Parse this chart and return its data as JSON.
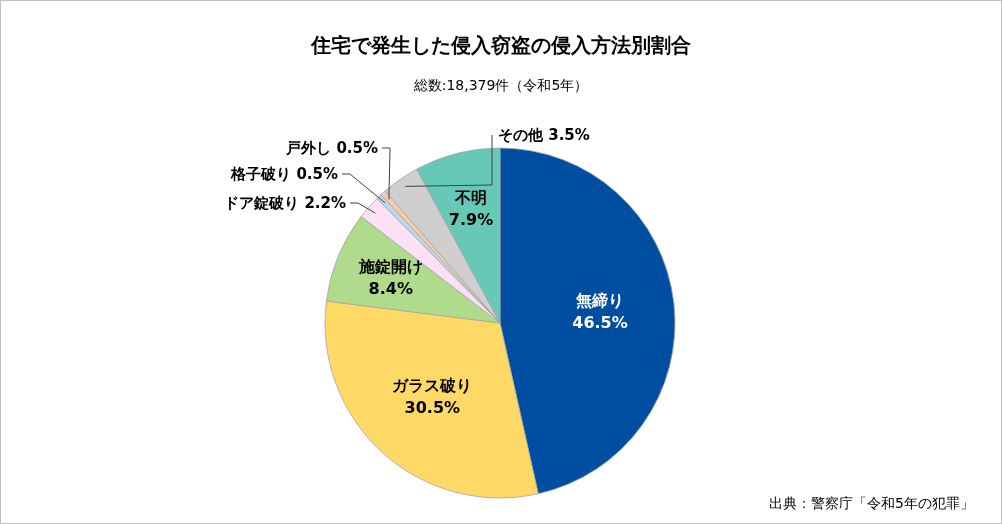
{
  "chart_data": {
    "type": "pie",
    "title": "住宅で発生した侵入窃盗の侵入方法別割合",
    "subtitle": "総数:18,379件（令和5年）",
    "annotations": [
      "出典：警察庁「令和5年の犯罪」"
    ],
    "categories": [
      "無締り",
      "ガラス破り",
      "施錠開け",
      "ドア錠破り",
      "格子破り",
      "戸外し",
      "その他",
      "不明"
    ],
    "values": [
      46.5,
      30.5,
      8.4,
      2.2,
      0.5,
      0.5,
      3.5,
      7.9
    ],
    "value_labels": [
      "46.5%",
      "30.5%",
      "8.4%",
      "2.2%",
      "0.5%",
      "0.5%",
      "3.5%",
      "7.9%"
    ],
    "colors": [
      "#004ea2",
      "#ffd966",
      "#b0da8c",
      "#fbe0f6",
      "#bdd7ee",
      "#f8cbad",
      "#d0cece",
      "#66c9b8"
    ]
  }
}
